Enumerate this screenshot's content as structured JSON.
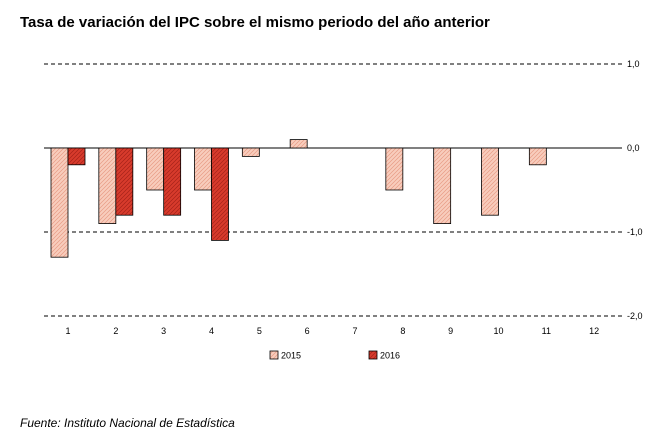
{
  "title": "Tasa de variación del IPC sobre el mismo periodo del año anterior",
  "source": "Fuente: Instituto Nacional de Estadística",
  "chart_data": {
    "type": "bar",
    "categories": [
      "1",
      "2",
      "3",
      "4",
      "5",
      "6",
      "7",
      "8",
      "9",
      "10",
      "11",
      "12"
    ],
    "series": [
      {
        "name": "2015",
        "color": "#f6c3b0",
        "values": [
          -1.3,
          -0.9,
          -0.5,
          -0.5,
          -0.1,
          0.1,
          null,
          -0.5,
          -0.9,
          -0.8,
          -0.2,
          null
        ]
      },
      {
        "name": "2016",
        "color": "#d93a2b",
        "values": [
          -0.2,
          -0.8,
          -0.8,
          -1.1,
          null,
          null,
          null,
          null,
          null,
          null,
          null,
          null
        ]
      }
    ],
    "y_ticks": [
      "1,0",
      "0,0",
      "-1,0",
      "-2,0"
    ],
    "y_tick_values": [
      1.0,
      0.0,
      -1.0,
      -2.0
    ],
    "ylim": [
      -2.0,
      1.0
    ],
    "y_axis_side": "right",
    "grid": true,
    "legend_position": "bottom"
  }
}
